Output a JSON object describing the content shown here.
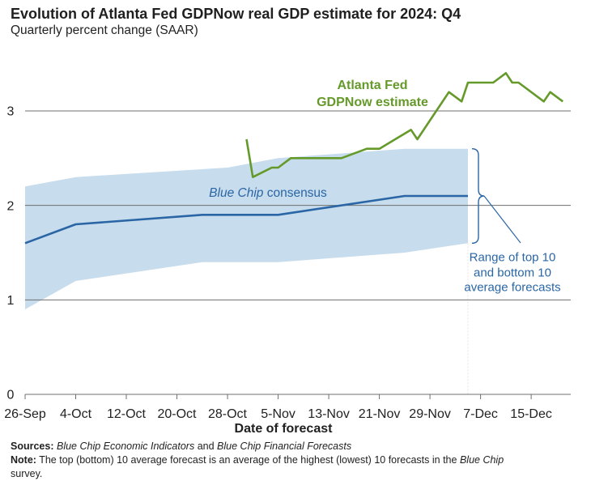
{
  "chart_data": {
    "type": "line",
    "title": "Evolution of Atlanta Fed GDPNow real GDP estimate for 2024: Q4",
    "subtitle": "Quarterly percent change (SAAR)",
    "xlabel": "Date of forecast",
    "ylabel": "",
    "x_domain": [
      "2024-09-26",
      "2024-12-21"
    ],
    "ylim": [
      0,
      3.6
    ],
    "grid": true,
    "y_ticks": [
      {
        "value": 0,
        "label": "0"
      },
      {
        "value": 1,
        "label": "1"
      },
      {
        "value": 2,
        "label": "2"
      },
      {
        "value": 3,
        "label": "3"
      }
    ],
    "x_ticks": [
      {
        "date": "2024-09-26",
        "label": "26-Sep"
      },
      {
        "date": "2024-10-04",
        "label": "4-Oct"
      },
      {
        "date": "2024-10-12",
        "label": "12-Oct"
      },
      {
        "date": "2024-10-20",
        "label": "20-Oct"
      },
      {
        "date": "2024-10-28",
        "label": "28-Oct"
      },
      {
        "date": "2024-11-05",
        "label": "5-Nov"
      },
      {
        "date": "2024-11-13",
        "label": "13-Nov"
      },
      {
        "date": "2024-11-21",
        "label": "21-Nov"
      },
      {
        "date": "2024-11-29",
        "label": "29-Nov"
      },
      {
        "date": "2024-12-07",
        "label": "7-Dec"
      },
      {
        "date": "2024-12-15",
        "label": "15-Dec"
      }
    ],
    "series": {
      "gdpnow": {
        "label_lines": [
          "Atlanta Fed",
          "GDPNow estimate"
        ],
        "color": "#659a2b",
        "points": [
          {
            "date": "2024-10-31",
            "value": 2.7
          },
          {
            "date": "2024-11-01",
            "value": 2.3
          },
          {
            "date": "2024-11-04",
            "value": 2.4
          },
          {
            "date": "2024-11-05",
            "value": 2.4
          },
          {
            "date": "2024-11-07",
            "value": 2.5
          },
          {
            "date": "2024-11-15",
            "value": 2.5
          },
          {
            "date": "2024-11-19",
            "value": 2.6
          },
          {
            "date": "2024-11-21",
            "value": 2.6
          },
          {
            "date": "2024-11-26",
            "value": 2.8
          },
          {
            "date": "2024-11-27",
            "value": 2.7
          },
          {
            "date": "2024-12-02",
            "value": 3.2
          },
          {
            "date": "2024-12-04",
            "value": 3.1
          },
          {
            "date": "2024-12-05",
            "value": 3.3
          },
          {
            "date": "2024-12-09",
            "value": 3.3
          },
          {
            "date": "2024-12-11",
            "value": 3.4
          },
          {
            "date": "2024-12-12",
            "value": 3.3
          },
          {
            "date": "2024-12-13",
            "value": 3.3
          },
          {
            "date": "2024-12-17",
            "value": 3.1
          },
          {
            "date": "2024-12-18",
            "value": 3.2
          },
          {
            "date": "2024-12-20",
            "value": 3.1
          }
        ]
      },
      "blue_chip_consensus": {
        "label_italic": "Blue Chip",
        "label_rest": "consensus",
        "color": "#2a66a5",
        "points": [
          {
            "date": "2024-09-26",
            "value": 1.6
          },
          {
            "date": "2024-10-04",
            "value": 1.8
          },
          {
            "date": "2024-10-24",
            "value": 1.9
          },
          {
            "date": "2024-11-05",
            "value": 1.9
          },
          {
            "date": "2024-11-25",
            "value": 2.1
          },
          {
            "date": "2024-12-05",
            "value": 2.1
          }
        ]
      }
    },
    "range_band": {
      "label_lines": [
        "Range of top 10",
        "and bottom 10",
        "average forecasts"
      ],
      "fill_color": "#c7dcec",
      "line_color": "#2a66a5",
      "upper": [
        {
          "date": "2024-09-26",
          "value": 2.2
        },
        {
          "date": "2024-10-04",
          "value": 2.3
        },
        {
          "date": "2024-10-28",
          "value": 2.4
        },
        {
          "date": "2024-11-05",
          "value": 2.5
        },
        {
          "date": "2024-11-25",
          "value": 2.6
        },
        {
          "date": "2024-12-05",
          "value": 2.6
        }
      ],
      "lower": [
        {
          "date": "2024-09-26",
          "value": 0.9
        },
        {
          "date": "2024-10-04",
          "value": 1.2
        },
        {
          "date": "2024-10-24",
          "value": 1.4
        },
        {
          "date": "2024-11-05",
          "value": 1.4
        },
        {
          "date": "2024-11-25",
          "value": 1.5
        },
        {
          "date": "2024-12-05",
          "value": 1.6
        }
      ]
    }
  },
  "footer": {
    "sources_label": "Sources:",
    "sources_pub1": "Blue Chip Economic Indicators",
    "sources_and": "and",
    "sources_pub2": "Blue Chip Financial Forecasts",
    "note_label": "Note:",
    "note_text": "The top (bottom) 10 average forecast is an average of the highest (lowest) 10 forecasts in the",
    "note_pub": "Blue Chip",
    "note_end": "survey."
  }
}
